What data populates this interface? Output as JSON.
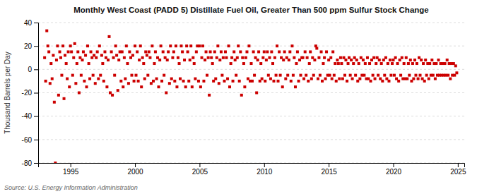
{
  "chart_data": {
    "type": "scatter",
    "title": "Monthly West Coast (PADD 5) Distillate Fuel Oil, Greater Than 500 ppm Sulfur Stock Change",
    "ylabel": "Thousand Barrels per Day",
    "annotations": [
      "Source: U.S. Energy Information Administration"
    ],
    "color": "#cc0000",
    "marker": "square",
    "grid": "y",
    "xlim": [
      1992.5,
      2025.5
    ],
    "xticks": [
      1995,
      2000,
      2005,
      2010,
      2015,
      2020,
      2025
    ],
    "ylim": [
      -80,
      40
    ],
    "yticks": [
      -80,
      -60,
      -40,
      -20,
      0,
      20,
      40
    ],
    "x": [
      1993.0,
      1993.08,
      1993.17,
      1993.25,
      1993.33,
      1993.42,
      1993.5,
      1993.58,
      1993.67,
      1993.75,
      1993.83,
      1993.92,
      1994.0,
      1994.08,
      1994.17,
      1994.25,
      1994.33,
      1994.42,
      1994.5,
      1994.58,
      1994.67,
      1994.75,
      1994.83,
      1994.92,
      1995.0,
      1995.08,
      1995.17,
      1995.25,
      1995.33,
      1995.42,
      1995.5,
      1995.58,
      1995.67,
      1995.75,
      1995.83,
      1995.92,
      1996.0,
      1996.08,
      1996.17,
      1996.25,
      1996.33,
      1996.42,
      1996.5,
      1996.58,
      1996.67,
      1996.75,
      1996.83,
      1996.92,
      1997.0,
      1997.08,
      1997.17,
      1997.25,
      1997.33,
      1997.42,
      1997.5,
      1997.58,
      1997.67,
      1997.75,
      1997.83,
      1997.92,
      1998.0,
      1998.08,
      1998.17,
      1998.25,
      1998.33,
      1998.42,
      1998.5,
      1998.58,
      1998.67,
      1998.75,
      1998.83,
      1998.92,
      1999.0,
      1999.08,
      1999.17,
      1999.25,
      1999.33,
      1999.42,
      1999.5,
      1999.58,
      1999.67,
      1999.75,
      1999.83,
      1999.92,
      2000.0,
      2000.08,
      2000.17,
      2000.25,
      2000.33,
      2000.42,
      2000.5,
      2000.58,
      2000.67,
      2000.75,
      2000.83,
      2000.92,
      2001.0,
      2001.08,
      2001.17,
      2001.25,
      2001.33,
      2001.42,
      2001.5,
      2001.58,
      2001.67,
      2001.75,
      2001.83,
      2001.92,
      2002.0,
      2002.08,
      2002.17,
      2002.25,
      2002.33,
      2002.42,
      2002.5,
      2002.58,
      2002.67,
      2002.75,
      2002.83,
      2002.92,
      2003.0,
      2003.08,
      2003.17,
      2003.25,
      2003.33,
      2003.42,
      2003.5,
      2003.58,
      2003.67,
      2003.75,
      2003.83,
      2003.92,
      2004.0,
      2004.08,
      2004.17,
      2004.25,
      2004.33,
      2004.42,
      2004.5,
      2004.58,
      2004.67,
      2004.75,
      2004.83,
      2004.92,
      2005.0,
      2005.08,
      2005.17,
      2005.25,
      2005.33,
      2005.42,
      2005.5,
      2005.58,
      2005.67,
      2005.75,
      2005.83,
      2005.92,
      2006.0,
      2006.08,
      2006.17,
      2006.25,
      2006.33,
      2006.42,
      2006.5,
      2006.58,
      2006.67,
      2006.75,
      2006.83,
      2006.92,
      2007.0,
      2007.08,
      2007.17,
      2007.25,
      2007.33,
      2007.42,
      2007.5,
      2007.58,
      2007.67,
      2007.75,
      2007.83,
      2007.92,
      2008.0,
      2008.08,
      2008.17,
      2008.25,
      2008.33,
      2008.42,
      2008.5,
      2008.58,
      2008.67,
      2008.75,
      2008.83,
      2008.92,
      2009.0,
      2009.08,
      2009.17,
      2009.25,
      2009.33,
      2009.42,
      2009.5,
      2009.58,
      2009.67,
      2009.75,
      2009.83,
      2009.92,
      2010.0,
      2010.08,
      2010.17,
      2010.25,
      2010.33,
      2010.42,
      2010.5,
      2010.58,
      2010.67,
      2010.75,
      2010.83,
      2010.92,
      2011.0,
      2011.08,
      2011.17,
      2011.25,
      2011.33,
      2011.42,
      2011.5,
      2011.58,
      2011.67,
      2011.75,
      2011.83,
      2011.92,
      2012.0,
      2012.08,
      2012.17,
      2012.25,
      2012.33,
      2012.42,
      2012.5,
      2012.58,
      2012.67,
      2012.75,
      2012.83,
      2012.92,
      2013.0,
      2013.08,
      2013.17,
      2013.25,
      2013.33,
      2013.42,
      2013.5,
      2013.58,
      2013.67,
      2013.75,
      2013.83,
      2013.92,
      2014.0,
      2014.08,
      2014.17,
      2014.25,
      2014.33,
      2014.42,
      2014.5,
      2014.58,
      2014.67,
      2014.75,
      2014.83,
      2014.92,
      2015.0,
      2015.08,
      2015.17,
      2015.25,
      2015.33,
      2015.42,
      2015.5,
      2015.58,
      2015.67,
      2015.75,
      2015.83,
      2015.92,
      2016.0,
      2016.08,
      2016.17,
      2016.25,
      2016.33,
      2016.42,
      2016.5,
      2016.58,
      2016.67,
      2016.75,
      2016.83,
      2016.92,
      2017.0,
      2017.08,
      2017.17,
      2017.25,
      2017.33,
      2017.42,
      2017.5,
      2017.58,
      2017.67,
      2017.75,
      2017.83,
      2017.92,
      2018.0,
      2018.08,
      2018.17,
      2018.25,
      2018.33,
      2018.42,
      2018.5,
      2018.58,
      2018.67,
      2018.75,
      2018.83,
      2018.92,
      2019.0,
      2019.08,
      2019.17,
      2019.25,
      2019.33,
      2019.42,
      2019.5,
      2019.58,
      2019.67,
      2019.75,
      2019.83,
      2019.92,
      2020.0,
      2020.08,
      2020.17,
      2020.25,
      2020.33,
      2020.42,
      2020.5,
      2020.58,
      2020.67,
      2020.75,
      2020.83,
      2020.92,
      2021.0,
      2021.08,
      2021.17,
      2021.25,
      2021.33,
      2021.42,
      2021.5,
      2021.58,
      2021.67,
      2021.75,
      2021.83,
      2021.92,
      2022.0,
      2022.08,
      2022.17,
      2022.25,
      2022.33,
      2022.42,
      2022.5,
      2022.58,
      2022.67,
      2022.75,
      2022.83,
      2022.92,
      2023.0,
      2023.08,
      2023.17,
      2023.25,
      2023.33,
      2023.42,
      2023.5,
      2023.58,
      2023.67,
      2023.75,
      2023.83,
      2023.92,
      2024.0,
      2024.08,
      2024.17,
      2024.25,
      2024.33,
      2024.42,
      2024.5,
      2024.58,
      2024.67,
      2024.75,
      2024.83,
      2024.92
    ],
    "values": [
      10,
      -10,
      33,
      20,
      15,
      -12,
      5,
      -8,
      12,
      -28,
      -80,
      8,
      20,
      -22,
      15,
      10,
      -5,
      20,
      -25,
      12,
      5,
      -8,
      15,
      -15,
      20,
      15,
      -5,
      10,
      22,
      -12,
      5,
      15,
      -20,
      10,
      -5,
      8,
      15,
      -10,
      12,
      -15,
      20,
      5,
      -8,
      15,
      10,
      -5,
      12,
      -12,
      10,
      15,
      -8,
      20,
      -5,
      12,
      5,
      -10,
      15,
      10,
      -15,
      8,
      28,
      -20,
      15,
      -22,
      10,
      -5,
      20,
      12,
      -18,
      8,
      15,
      -10,
      15,
      -15,
      10,
      -8,
      20,
      5,
      -12,
      15,
      10,
      -5,
      12,
      -10,
      20,
      -5,
      15,
      -10,
      8,
      20,
      -15,
      10,
      5,
      -8,
      15,
      12,
      -5,
      15,
      10,
      -12,
      20,
      -10,
      5,
      15,
      -8,
      10,
      -15,
      8,
      20,
      -10,
      15,
      -5,
      10,
      -20,
      8,
      15,
      -12,
      20,
      -8,
      10,
      15,
      -10,
      20,
      -15,
      10,
      5,
      -8,
      20,
      15,
      -10,
      8,
      -15,
      20,
      15,
      -10,
      8,
      20,
      -15,
      10,
      5,
      -8,
      15,
      20,
      -10,
      20,
      -15,
      10,
      20,
      -10,
      8,
      15,
      -5,
      10,
      -22,
      15,
      10,
      5,
      -10,
      15,
      -8,
      10,
      20,
      -12,
      8,
      15,
      -5,
      10,
      -10,
      15,
      10,
      -8,
      20,
      -15,
      5,
      10,
      -10,
      15,
      8,
      -5,
      10,
      20,
      -10,
      15,
      -22,
      10,
      5,
      -15,
      10,
      15,
      -8,
      20,
      -10,
      5,
      -10,
      15,
      -5,
      10,
      -20,
      8,
      15,
      -10,
      5,
      -8,
      10,
      15,
      -10,
      8,
      15,
      -5,
      10,
      -8,
      15,
      5,
      -10,
      10,
      -5,
      20,
      -10,
      15,
      -5,
      10,
      -15,
      8,
      15,
      -8,
      10,
      -5,
      8,
      15,
      -10,
      20,
      -5,
      10,
      -15,
      5,
      15,
      -10,
      8,
      -5,
      10,
      10,
      -8,
      15,
      -5,
      10,
      -10,
      5,
      15,
      -8,
      10,
      -5,
      8,
      20,
      18,
      -8,
      10,
      -5,
      15,
      -10,
      5,
      10,
      -8,
      15,
      -5,
      8,
      -5,
      10,
      -8,
      15,
      -5,
      5,
      -10,
      8,
      5,
      -8,
      10,
      5,
      -8,
      10,
      -5,
      8,
      -10,
      5,
      10,
      -5,
      8,
      -8,
      5,
      10,
      -5,
      8,
      -10,
      5,
      -8,
      10,
      -5,
      8,
      -5,
      5,
      -8,
      10,
      -8,
      5,
      -10,
      8,
      -5,
      10,
      -8,
      5,
      10,
      -5,
      8,
      -8,
      5,
      -10,
      8,
      -5,
      10,
      -8,
      5,
      -10,
      8,
      -5,
      5,
      8,
      -5,
      10,
      -8,
      5,
      -10,
      8,
      -5,
      10,
      -8,
      5,
      -8,
      10,
      -8,
      5,
      -5,
      8,
      -10,
      5,
      -8,
      8,
      -5,
      5,
      -8,
      10,
      -5,
      8,
      -8,
      5,
      -10,
      8,
      -5,
      5,
      -8,
      5,
      -5,
      8,
      -5,
      5,
      -8,
      5,
      -5,
      8,
      -5,
      5,
      -5,
      5,
      -5,
      5,
      -5,
      8,
      -5,
      5,
      -8,
      5,
      -5,
      5,
      -5,
      3,
      -3
    ]
  }
}
